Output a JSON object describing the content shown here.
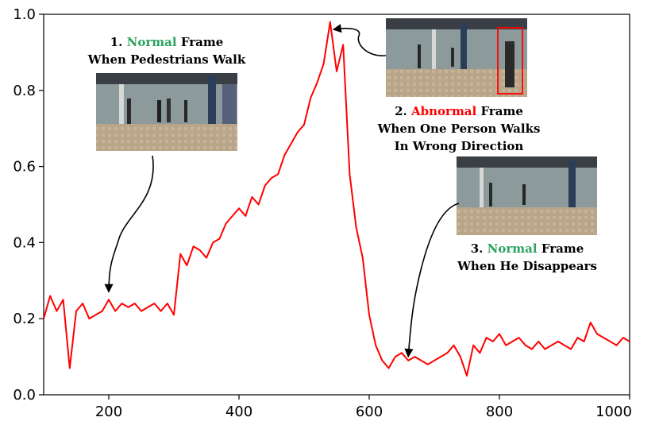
{
  "colors": {
    "series": "#ff0000",
    "normal_word": "#2ca25f",
    "abnormal_word": "#ff0000",
    "axis": "#000000",
    "box": "#ff0000"
  },
  "chart_data": {
    "type": "line",
    "title": "",
    "xlabel": "",
    "ylabel": "",
    "xlim": [
      100,
      1000
    ],
    "ylim": [
      0.0,
      1.0
    ],
    "xticks": [
      "200",
      "400",
      "600",
      "800",
      "1000"
    ],
    "yticks": [
      "0.0",
      "0.2",
      "0.4",
      "0.6",
      "0.8",
      "1.0"
    ],
    "grid": false,
    "series": [
      {
        "color": "#ff0000",
        "x": [
          100,
          110,
          120,
          130,
          140,
          150,
          160,
          170,
          180,
          190,
          200,
          210,
          220,
          230,
          240,
          250,
          260,
          270,
          280,
          290,
          300,
          310,
          320,
          330,
          340,
          350,
          360,
          370,
          380,
          390,
          400,
          410,
          420,
          430,
          440,
          450,
          460,
          470,
          480,
          490,
          500,
          510,
          520,
          530,
          540,
          550,
          560,
          570,
          580,
          590,
          600,
          610,
          620,
          630,
          640,
          650,
          660,
          670,
          680,
          690,
          700,
          710,
          720,
          730,
          740,
          750,
          760,
          770,
          780,
          790,
          800,
          810,
          820,
          830,
          840,
          850,
          860,
          870,
          880,
          890,
          900,
          910,
          920,
          930,
          940,
          950,
          960,
          970,
          980,
          990,
          1000
        ],
        "y": [
          0.2,
          0.26,
          0.22,
          0.25,
          0.07,
          0.22,
          0.24,
          0.2,
          0.21,
          0.22,
          0.25,
          0.22,
          0.24,
          0.23,
          0.24,
          0.22,
          0.23,
          0.24,
          0.22,
          0.24,
          0.21,
          0.37,
          0.34,
          0.39,
          0.38,
          0.36,
          0.4,
          0.41,
          0.45,
          0.47,
          0.49,
          0.47,
          0.52,
          0.5,
          0.55,
          0.57,
          0.58,
          0.63,
          0.66,
          0.69,
          0.71,
          0.78,
          0.82,
          0.87,
          0.98,
          0.85,
          0.92,
          0.58,
          0.44,
          0.36,
          0.21,
          0.13,
          0.09,
          0.07,
          0.1,
          0.11,
          0.09,
          0.1,
          0.09,
          0.08,
          0.09,
          0.1,
          0.11,
          0.13,
          0.1,
          0.05,
          0.13,
          0.11,
          0.15,
          0.14,
          0.16,
          0.13,
          0.14,
          0.15,
          0.13,
          0.12,
          0.14,
          0.12,
          0.13,
          0.14,
          0.13,
          0.12,
          0.15,
          0.14,
          0.19,
          0.16,
          0.15,
          0.14,
          0.13,
          0.15,
          0.14
        ]
      }
    ],
    "annotations": [
      {
        "number": "1.",
        "keyword": "Normal",
        "rest": "Frame",
        "lines": [
          "When Pedestrians Walk"
        ],
        "target_x": 200,
        "target_y": 0.27
      },
      {
        "number": "2.",
        "keyword": "Abnormal",
        "rest": "Frame",
        "lines": [
          "When One Person Walks",
          "In Wrong Direction"
        ],
        "target_x": 540,
        "target_y": 0.96
      },
      {
        "number": "3.",
        "keyword": "Normal",
        "rest": "Frame",
        "lines": [
          "When He Disappears"
        ],
        "target_x": 660,
        "target_y": 0.1
      }
    ]
  }
}
